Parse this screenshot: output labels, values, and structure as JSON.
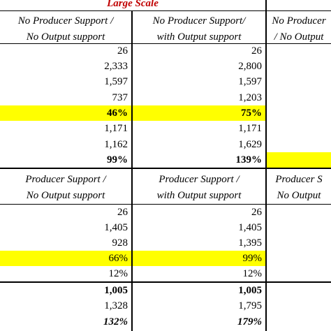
{
  "title": "Large Scale",
  "sections": [
    {
      "headers": [
        [
          "No Producer Support /",
          "No Output support"
        ],
        [
          "No Producer Support/",
          "with Output support"
        ],
        [
          "No Producer",
          "/ No Output"
        ]
      ],
      "rows": [
        [
          "26",
          "26"
        ],
        [
          "2,333",
          "2,800"
        ],
        [
          "1,597",
          "1,597"
        ],
        [
          "737",
          "1,203"
        ],
        [
          "46%",
          "75%"
        ],
        [
          "1,171",
          "1,171"
        ],
        [
          "1,162",
          "1,629"
        ],
        [
          "99%",
          "139%"
        ]
      ]
    },
    {
      "headers": [
        [
          "Producer Support /",
          "No Output support"
        ],
        [
          "Producer Support /",
          "with Output support"
        ],
        [
          "Producer S",
          "No Output"
        ]
      ],
      "rows": [
        [
          "26",
          "26"
        ],
        [
          "1,405",
          "1,405"
        ],
        [
          "928",
          "1,395"
        ],
        [
          "66%",
          "99%"
        ],
        [
          "12%",
          "12%"
        ],
        [
          "1,005",
          "1,005"
        ],
        [
          "1,328",
          "1,795"
        ],
        [
          "132%",
          "179%"
        ]
      ]
    }
  ]
}
